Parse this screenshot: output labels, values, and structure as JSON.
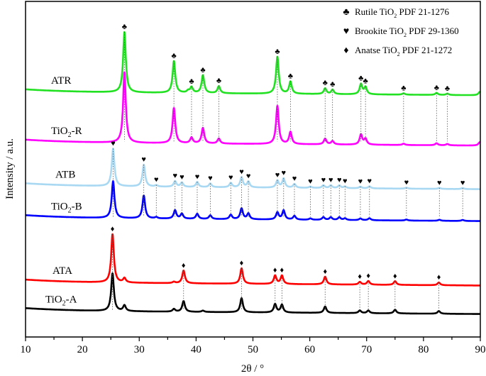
{
  "chart_data": {
    "type": "line",
    "title": "",
    "xlabel": "2θ / °",
    "ylabel": "Intensity / a.u.",
    "xlim": [
      10,
      90
    ],
    "ylim": [
      0,
      100
    ],
    "xticks": [
      "10",
      "20",
      "30",
      "40",
      "50",
      "60",
      "70",
      "80",
      "90"
    ],
    "grid": false,
    "legend_placement": "top-right",
    "legend": [
      {
        "symbol": "♣",
        "phase": "Rutile TiO",
        "sub": "2",
        "ref": " PDF 21-1276"
      },
      {
        "symbol": "♥",
        "phase": "Brookite TiO",
        "sub": "2",
        "ref": " PDF 29-1360"
      },
      {
        "symbol": "♦",
        "phase": "Anatse TiO",
        "sub": "2",
        "ref": " PDF 21-1272"
      }
    ],
    "reference_peaks": {
      "rutile": [
        27.4,
        36.1,
        39.2,
        41.2,
        44.0,
        54.3,
        56.6,
        62.7,
        64.0,
        69.0,
        69.8,
        76.5,
        82.3,
        84.2
      ],
      "brookite": [
        25.4,
        30.8,
        33.0,
        36.3,
        37.5,
        40.2,
        42.5,
        46.1,
        48.0,
        49.2,
        54.3,
        55.4,
        57.3,
        60.1,
        62.4,
        63.7,
        65.2,
        66.2,
        68.9,
        70.5,
        77.0,
        82.8,
        86.9
      ],
      "anatase": [
        25.3,
        37.8,
        48.0,
        53.9,
        55.1,
        62.7,
        68.8,
        70.3,
        75.0,
        82.7
      ]
    },
    "series": [
      {
        "label": "ATR",
        "label_sub": "",
        "label_suffix": "",
        "color": "#22e022",
        "baseline": 73.0,
        "marks": "rutile",
        "peaks": [
          [
            27.4,
            18
          ],
          [
            36.1,
            9.5
          ],
          [
            38.6,
            0.6
          ],
          [
            39.2,
            1.7
          ],
          [
            41.2,
            5.3
          ],
          [
            44.0,
            2.1
          ],
          [
            54.3,
            11
          ],
          [
            56.6,
            3.6
          ],
          [
            62.7,
            1.7
          ],
          [
            64.0,
            1.3
          ],
          [
            69.0,
            3
          ],
          [
            69.8,
            2.1
          ],
          [
            76.5,
            0.4
          ],
          [
            82.3,
            0.6
          ],
          [
            84.2,
            0.4
          ],
          [
            89.9,
            1
          ]
        ]
      },
      {
        "label": "TiO",
        "label_sub": "2",
        "label_suffix": "-R",
        "color": "#ff00ff",
        "baseline": 58.0,
        "marks": "",
        "peaks": [
          [
            27.4,
            21
          ],
          [
            36.1,
            10.5
          ],
          [
            39.2,
            1.7
          ],
          [
            41.2,
            4.6
          ],
          [
            44.0,
            1.5
          ],
          [
            54.3,
            11.4
          ],
          [
            56.6,
            3.6
          ],
          [
            62.7,
            1.7
          ],
          [
            64.0,
            1.0
          ],
          [
            69.0,
            3
          ],
          [
            69.8,
            1.7
          ],
          [
            76.5,
            0.4
          ],
          [
            82.3,
            0.6
          ],
          [
            84.2,
            0.4
          ],
          [
            89.9,
            1
          ]
        ]
      },
      {
        "label": "ATB",
        "label_sub": "",
        "label_suffix": "",
        "color": "#a8d8f2",
        "baseline": 45.0,
        "marks": "brookite",
        "peaks": [
          [
            25.4,
            11.2
          ],
          [
            30.8,
            6.5
          ],
          [
            33.0,
            0.4
          ],
          [
            36.3,
            1.7
          ],
          [
            37.5,
            1.3
          ],
          [
            40.2,
            1.5
          ],
          [
            42.5,
            1.1
          ],
          [
            46.1,
            1.3
          ],
          [
            48.0,
            3
          ],
          [
            49.2,
            1.7
          ],
          [
            54.3,
            2.1
          ],
          [
            55.4,
            2.7
          ],
          [
            57.3,
            1.1
          ],
          [
            60.1,
            0.4
          ],
          [
            62.4,
            0.8
          ],
          [
            63.7,
            0.8
          ],
          [
            65.2,
            0.8
          ],
          [
            66.2,
            0.5
          ],
          [
            68.9,
            0.5
          ],
          [
            70.5,
            0.6
          ],
          [
            77.0,
            0.3
          ],
          [
            82.8,
            0.3
          ],
          [
            86.9,
            0.3
          ]
        ]
      },
      {
        "label": "TiO",
        "label_sub": "2",
        "label_suffix": "-B",
        "color": "#0000ff",
        "baseline": 35.5,
        "marks": "",
        "peaks": [
          [
            25.4,
            11
          ],
          [
            30.8,
            6.8
          ],
          [
            33.0,
            0.4
          ],
          [
            36.3,
            2.5
          ],
          [
            37.5,
            1.5
          ],
          [
            40.2,
            1.5
          ],
          [
            42.5,
            1.1
          ],
          [
            46.1,
            1.3
          ],
          [
            48.0,
            3.2
          ],
          [
            49.2,
            1.7
          ],
          [
            54.3,
            2.1
          ],
          [
            55.4,
            2.7
          ],
          [
            57.3,
            1.1
          ],
          [
            60.1,
            0.4
          ],
          [
            62.4,
            0.8
          ],
          [
            63.7,
            0.8
          ],
          [
            65.2,
            0.8
          ],
          [
            66.2,
            0.5
          ],
          [
            68.9,
            0.5
          ],
          [
            70.5,
            0.6
          ],
          [
            77.0,
            0.3
          ],
          [
            82.8,
            0.3
          ],
          [
            86.9,
            0.3
          ]
        ]
      },
      {
        "label": "ATA",
        "label_sub": "",
        "label_suffix": "",
        "color": "#ff0000",
        "baseline": 16.3,
        "marks": "anatase",
        "peaks": [
          [
            25.3,
            14.4
          ],
          [
            27.4,
            1.3
          ],
          [
            36.1,
            0.4
          ],
          [
            37.8,
            3.8
          ],
          [
            48.0,
            4.6
          ],
          [
            53.9,
            2.5
          ],
          [
            55.1,
            2.5
          ],
          [
            62.7,
            2.3
          ],
          [
            68.8,
            0.8
          ],
          [
            70.3,
            1.1
          ],
          [
            75.0,
            1.1
          ],
          [
            82.7,
            0.8
          ]
        ]
      },
      {
        "label": "TiO",
        "label_sub": "2",
        "label_suffix": "-A",
        "color": "#000000",
        "baseline": 7.8,
        "marks": "",
        "peaks": [
          [
            25.3,
            11.2
          ],
          [
            27.4,
            1.7
          ],
          [
            36.1,
            0.8
          ],
          [
            37.8,
            3.2
          ],
          [
            41.2,
            0.4
          ],
          [
            48.0,
            4.2
          ],
          [
            53.9,
            2.5
          ],
          [
            55.1,
            2.3
          ],
          [
            62.7,
            1.9
          ],
          [
            68.8,
            0.8
          ],
          [
            70.3,
            0.8
          ],
          [
            75.0,
            1.1
          ],
          [
            82.7,
            0.8
          ]
        ]
      }
    ]
  }
}
